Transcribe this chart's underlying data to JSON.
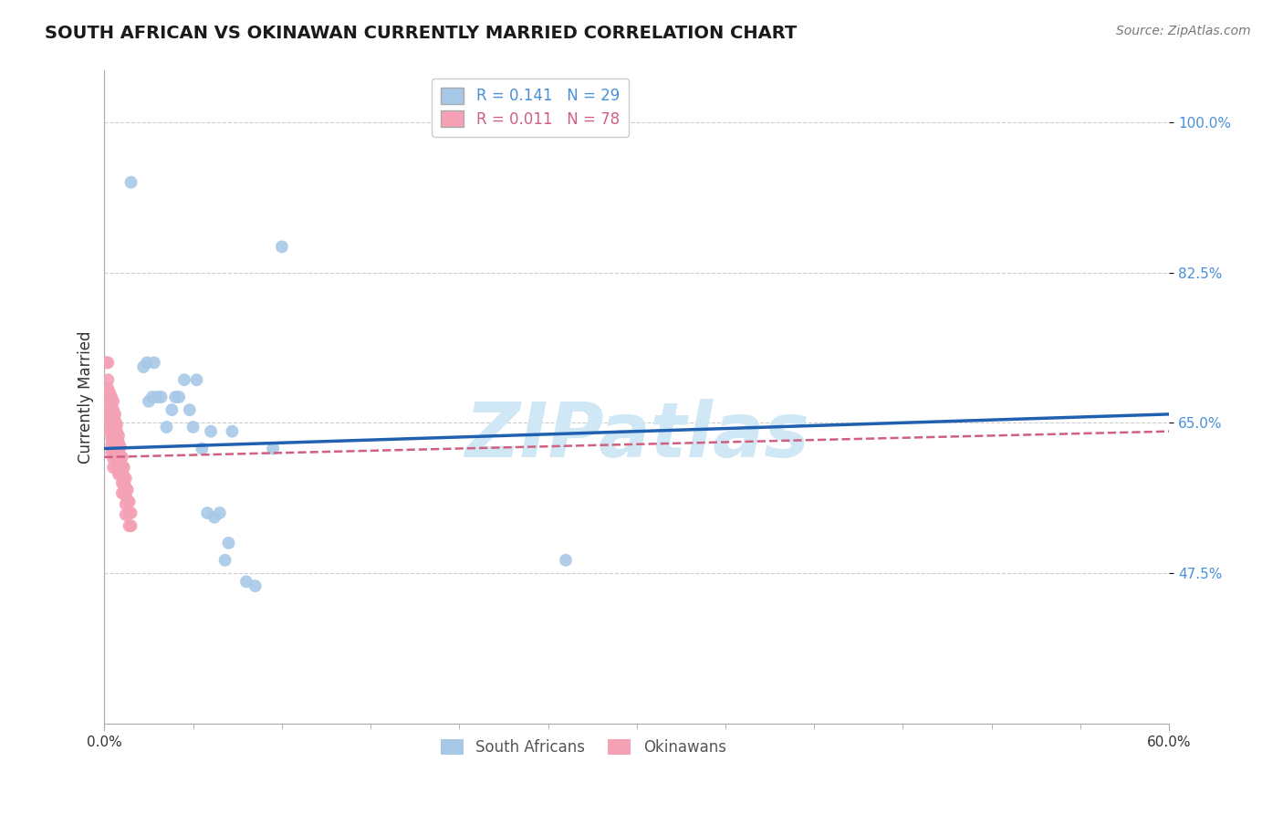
{
  "title": "SOUTH AFRICAN VS OKINAWAN CURRENTLY MARRIED CORRELATION CHART",
  "source_text": "Source: ZipAtlas.com",
  "ylabel": "Currently Married",
  "xlim": [
    0.0,
    0.6
  ],
  "ylim": [
    0.3,
    1.06
  ],
  "xtick_values": [
    0.0,
    0.6
  ],
  "xtick_labels": [
    "0.0%",
    "60.0%"
  ],
  "ytick_values": [
    1.0,
    0.825,
    0.65,
    0.475
  ],
  "ytick_labels": [
    "100.0%",
    "82.5%",
    "65.0%",
    "47.5%"
  ],
  "R_blue": 0.141,
  "N_blue": 29,
  "R_pink": 0.011,
  "N_pink": 78,
  "blue_color": "#a8c8e8",
  "pink_color": "#f4a0b5",
  "blue_line_color": "#2060b0",
  "pink_line_color": "#d06080",
  "legend_label_blue": "South Africans",
  "legend_label_pink": "Okinawans",
  "watermark": "ZIPatlas",
  "watermark_color": "#d0e8f5",
  "blue_x": [
    0.015,
    0.022,
    0.024,
    0.025,
    0.027,
    0.028,
    0.03,
    0.032,
    0.035,
    0.038,
    0.04,
    0.042,
    0.045,
    0.048,
    0.05,
    0.052,
    0.055,
    0.058,
    0.06,
    0.062,
    0.065,
    0.068,
    0.07,
    0.072,
    0.08,
    0.085,
    0.095,
    0.1,
    0.26
  ],
  "blue_y": [
    0.93,
    0.715,
    0.72,
    0.675,
    0.68,
    0.72,
    0.68,
    0.68,
    0.645,
    0.665,
    0.68,
    0.68,
    0.7,
    0.665,
    0.645,
    0.7,
    0.62,
    0.545,
    0.64,
    0.54,
    0.545,
    0.49,
    0.51,
    0.64,
    0.465,
    0.46,
    0.62,
    0.855,
    0.49
  ],
  "pink_x": [
    0.001,
    0.002,
    0.002,
    0.002,
    0.002,
    0.002,
    0.003,
    0.003,
    0.003,
    0.003,
    0.003,
    0.003,
    0.003,
    0.004,
    0.004,
    0.004,
    0.004,
    0.004,
    0.004,
    0.004,
    0.004,
    0.004,
    0.004,
    0.005,
    0.005,
    0.005,
    0.005,
    0.005,
    0.005,
    0.005,
    0.005,
    0.005,
    0.005,
    0.006,
    0.006,
    0.006,
    0.006,
    0.006,
    0.006,
    0.006,
    0.007,
    0.007,
    0.007,
    0.007,
    0.007,
    0.007,
    0.007,
    0.008,
    0.008,
    0.008,
    0.008,
    0.008,
    0.008,
    0.009,
    0.009,
    0.009,
    0.009,
    0.01,
    0.01,
    0.01,
    0.01,
    0.01,
    0.011,
    0.011,
    0.011,
    0.011,
    0.012,
    0.012,
    0.012,
    0.012,
    0.012,
    0.013,
    0.013,
    0.014,
    0.014,
    0.014,
    0.015,
    0.015
  ],
  "pink_y": [
    0.72,
    0.72,
    0.7,
    0.69,
    0.675,
    0.66,
    0.685,
    0.675,
    0.67,
    0.66,
    0.655,
    0.65,
    0.64,
    0.68,
    0.67,
    0.665,
    0.66,
    0.655,
    0.648,
    0.64,
    0.632,
    0.625,
    0.615,
    0.675,
    0.665,
    0.658,
    0.65,
    0.642,
    0.635,
    0.628,
    0.618,
    0.608,
    0.598,
    0.66,
    0.652,
    0.645,
    0.637,
    0.63,
    0.622,
    0.612,
    0.648,
    0.64,
    0.632,
    0.625,
    0.617,
    0.608,
    0.598,
    0.635,
    0.627,
    0.618,
    0.61,
    0.6,
    0.59,
    0.622,
    0.612,
    0.602,
    0.592,
    0.61,
    0.6,
    0.59,
    0.58,
    0.568,
    0.598,
    0.588,
    0.578,
    0.568,
    0.585,
    0.575,
    0.565,
    0.555,
    0.543,
    0.572,
    0.56,
    0.558,
    0.545,
    0.53,
    0.545,
    0.53
  ],
  "blue_trend_x": [
    0.0,
    0.6
  ],
  "blue_trend_y": [
    0.62,
    0.66
  ],
  "pink_trend_x": [
    0.0,
    0.6
  ],
  "pink_trend_y": [
    0.61,
    0.64
  ],
  "grid_color": "#cccccc",
  "spine_color": "#aaaaaa",
  "title_fontsize": 14,
  "tick_fontsize": 11,
  "legend_fontsize": 12,
  "watermark_fontsize": 60,
  "dot_size": 100
}
